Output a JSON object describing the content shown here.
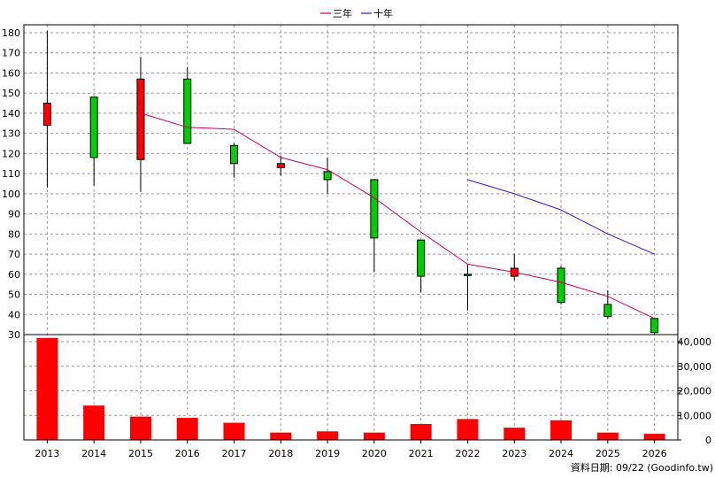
{
  "legend": [
    {
      "label": "三年",
      "color": "#cc0066"
    },
    {
      "label": "十年",
      "color": "#4b0fd0"
    }
  ],
  "footer_note": "資料日期: 09/22 (Goodinfo.tw)",
  "colors": {
    "up": "#ff0000",
    "down": "#00cc00",
    "volume": "#ff0000",
    "ma3": "#cc0066",
    "ma10": "#4b0fd0"
  },
  "chart_data": [
    {
      "type": "candlestick",
      "x": [
        "2013",
        "2014",
        "2015",
        "2016",
        "2017",
        "2018",
        "2019",
        "2020",
        "2021",
        "2022",
        "2023",
        "2024",
        "2025",
        "2026"
      ],
      "ylim": [
        30,
        180
      ],
      "yticks": [
        30,
        40,
        50,
        60,
        70,
        80,
        90,
        100,
        110,
        120,
        130,
        140,
        150,
        160,
        170,
        180
      ],
      "grid": true,
      "candles": [
        {
          "x": "2013",
          "open": 134,
          "close": 145,
          "high": 181,
          "low": 103
        },
        {
          "x": "2014",
          "open": 148,
          "close": 118,
          "high": 148,
          "low": 104
        },
        {
          "x": "2015",
          "open": 117,
          "close": 157,
          "high": 168,
          "low": 101
        },
        {
          "x": "2016",
          "open": 157,
          "close": 125,
          "high": 163,
          "low": 125
        },
        {
          "x": "2017",
          "open": 124,
          "close": 115,
          "high": 125,
          "low": 108
        },
        {
          "x": "2018",
          "open": 113,
          "close": 115,
          "high": 119,
          "low": 109
        },
        {
          "x": "2019",
          "open": 111,
          "close": 107,
          "high": 118,
          "low": 100
        },
        {
          "x": "2020",
          "open": 107,
          "close": 78,
          "high": 107,
          "low": 61
        },
        {
          "x": "2021",
          "open": 77,
          "close": 59,
          "high": 77,
          "low": 51
        },
        {
          "x": "2022",
          "open": 60,
          "close": 59.5,
          "high": 65,
          "low": 42
        },
        {
          "x": "2023",
          "open": 59,
          "close": 63,
          "high": 70,
          "low": 57
        },
        {
          "x": "2024",
          "open": 63,
          "close": 46,
          "high": 64,
          "low": 45
        },
        {
          "x": "2025",
          "open": 45,
          "close": 39,
          "high": 52,
          "low": 38
        },
        {
          "x": "2026",
          "open": 38,
          "close": 31,
          "high": 38,
          "low": 30
        }
      ],
      "series": [
        {
          "name": "三年",
          "x": [
            "2015",
            "2016",
            "2017",
            "2018",
            "2019",
            "2020",
            "2021",
            "2022",
            "2023",
            "2024",
            "2025",
            "2026"
          ],
          "values": [
            140,
            133,
            132,
            118,
            112,
            98,
            81,
            65,
            61,
            56,
            49,
            38
          ]
        },
        {
          "name": "十年",
          "x": [
            "2022",
            "2023",
            "2024",
            "2025",
            "2026"
          ],
          "values": [
            107,
            100,
            92,
            80,
            70
          ]
        }
      ]
    },
    {
      "type": "bar",
      "categories": [
        "2013",
        "2014",
        "2015",
        "2016",
        "2017",
        "2018",
        "2019",
        "2020",
        "2021",
        "2022",
        "2023",
        "2024",
        "2025",
        "2026"
      ],
      "values": [
        41500,
        14000,
        9500,
        9000,
        7000,
        3000,
        3500,
        3000,
        6500,
        8500,
        5000,
        8000,
        3000,
        2500
      ],
      "ylim": [
        0,
        40000
      ],
      "yticks": [
        "0",
        "10,000",
        "20,000",
        "30,000",
        "40,000"
      ],
      "ytick_values": [
        0,
        10000,
        20000,
        30000,
        40000
      ]
    }
  ]
}
